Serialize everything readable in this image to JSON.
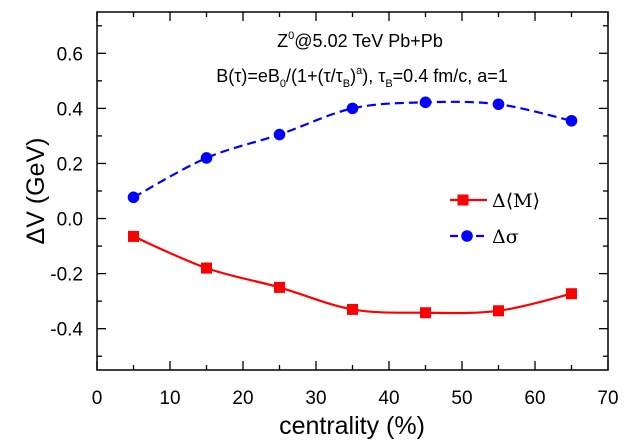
{
  "chart_data": {
    "type": "line",
    "xlabel": "centrality (%)",
    "ylabel": "ΔV (GeV)",
    "xlim": [
      0,
      70
    ],
    "ylim": [
      -0.55,
      0.75
    ],
    "xticks": [
      0,
      10,
      20,
      30,
      40,
      50,
      60,
      70
    ],
    "xtick_labels": [
      "0",
      "10",
      "20",
      "30",
      "40",
      "50",
      "60",
      "70"
    ],
    "yticks": [
      -0.4,
      -0.2,
      0.0,
      0.2,
      0.4,
      0.6
    ],
    "ytick_labels": [
      "-0.4",
      "-0.2",
      "0.0",
      "0.2",
      "0.4",
      "0.6"
    ],
    "grid": false,
    "legend_position": "right",
    "annotation": {
      "line1": {
        "pre": "Z",
        "sup": "0",
        "post": "@5.02 TeV Pb+Pb"
      },
      "line2": {
        "p1": "B(τ)=eB",
        "s1": "0",
        "p2": "/(1+(τ/τ",
        "s2": "B",
        "p3": ")",
        "s3": "a",
        "p4": "), τ",
        "s4": "B",
        "p5": "=0.4 fm/c, a=1"
      }
    },
    "series": [
      {
        "name": "Δ⟨M⟩",
        "color": "#ff0000",
        "marker": "square",
        "line_style": "solid",
        "x": [
          5,
          15,
          25,
          35,
          45,
          55,
          65
        ],
        "values": [
          -0.065,
          -0.18,
          -0.25,
          -0.33,
          -0.342,
          -0.335,
          -0.273
        ]
      },
      {
        "name": "Δσ",
        "color": "#0000ff",
        "marker": "circle",
        "line_style": "dashed",
        "x": [
          5,
          15,
          25,
          35,
          45,
          55,
          65
        ],
        "values": [
          0.077,
          0.22,
          0.305,
          0.4,
          0.422,
          0.415,
          0.355
        ]
      }
    ]
  }
}
